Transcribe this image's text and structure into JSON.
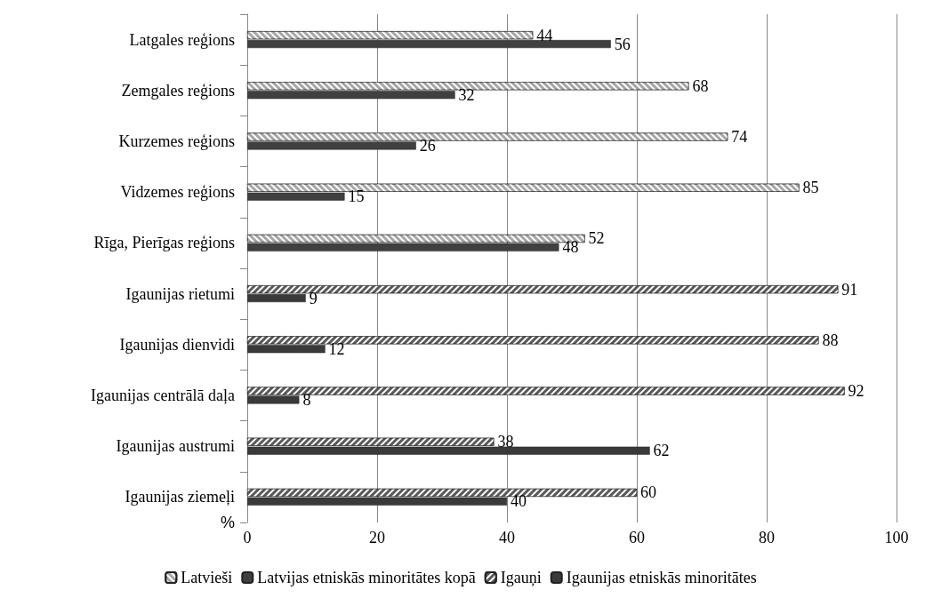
{
  "chart_data": {
    "type": "bar",
    "orientation": "horizontal",
    "xlabel": "%",
    "categories": [
      "Latgales reģions",
      "Zemgales reģions",
      "Kurzemes reģions",
      "Vidzemes reģions",
      "Rīga, Pierīgas reģions",
      "Igaunijas rietumi",
      "Igaunijas dienvidi",
      "Igaunijas centrālā daļa",
      "Igaunijas austrumi",
      "Igaunijas ziemeļi"
    ],
    "series": [
      {
        "name": "Latvieši",
        "color": "#a6a6a6",
        "values": [
          44,
          68,
          74,
          85,
          52,
          null,
          null,
          null,
          null,
          null
        ]
      },
      {
        "name": "Latvijas etniskās minoritātes kopā",
        "color": "#404040",
        "values": [
          56,
          32,
          26,
          15,
          48,
          null,
          null,
          null,
          null,
          null
        ]
      },
      {
        "name": "Igauņi",
        "color": "#595959",
        "values": [
          null,
          null,
          null,
          null,
          null,
          91,
          88,
          92,
          38,
          60
        ]
      },
      {
        "name": "Igaunijas etniskās minoritātes",
        "color": "#3a3a3a",
        "values": [
          null,
          null,
          null,
          null,
          null,
          9,
          12,
          8,
          62,
          40
        ]
      }
    ],
    "xlim": [
      0,
      100
    ],
    "xticks": [
      0,
      20,
      40,
      60,
      80,
      100
    ],
    "grid": "x",
    "legend": "bottom",
    "data_labels": true
  }
}
